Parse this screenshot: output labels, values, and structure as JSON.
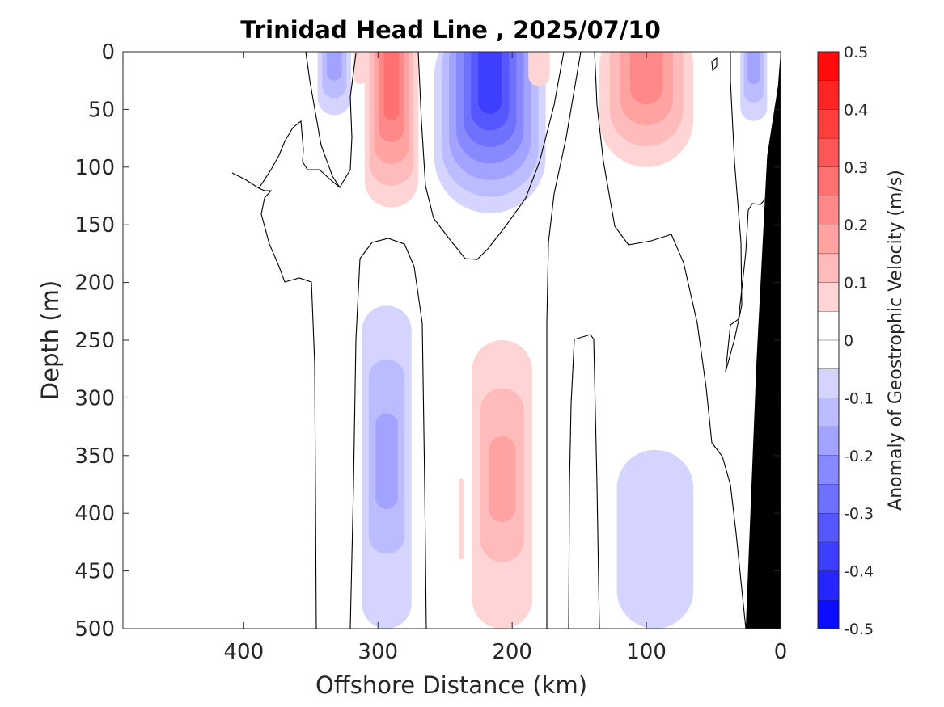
{
  "chart_data": {
    "type": "contour",
    "title": "Trinidad Head Line , 2025/07/10",
    "xlabel": "Offshore Distance (km)",
    "ylabel": "Depth (m)",
    "colorbar_label": "Anomaly of Geostrophic Velocity (m/s)",
    "xlim": [
      490,
      0
    ],
    "ylim": [
      0,
      500
    ],
    "x_reversed": true,
    "y_reversed": true,
    "x_ticks": [
      400,
      300,
      200,
      100,
      0
    ],
    "y_ticks": [
      0,
      50,
      100,
      150,
      200,
      250,
      300,
      350,
      400,
      450,
      500
    ],
    "colorbar": {
      "range": [
        -0.5,
        0.5
      ],
      "step": 0.05,
      "ticks": [
        0.5,
        0.4,
        0.3,
        0.2,
        0.1,
        0,
        -0.1,
        -0.2,
        -0.3,
        -0.4,
        -0.5
      ],
      "colormap": "blue-white-red",
      "positive_color": "#ff0000",
      "negative_color": "#0000ff"
    },
    "features": [
      {
        "kind": "positive",
        "x_range": [
          318,
          308
        ],
        "depth_range": [
          0,
          28
        ],
        "peak": 0.05
      },
      {
        "kind": "negative",
        "x_range": [
          345,
          320
        ],
        "depth_range": [
          0,
          55
        ],
        "peak": -0.15
      },
      {
        "kind": "positive",
        "x_range": [
          310,
          270
        ],
        "depth_range": [
          0,
          135
        ],
        "peak": 0.25
      },
      {
        "kind": "negative",
        "x_range": [
          258,
          175
        ],
        "depth_range": [
          0,
          140
        ],
        "peak": -0.35
      },
      {
        "kind": "positive",
        "x_range": [
          188,
          172
        ],
        "depth_range": [
          0,
          30
        ],
        "peak": 0.05
      },
      {
        "kind": "positive",
        "x_range": [
          135,
          65
        ],
        "depth_range": [
          0,
          100
        ],
        "peak": 0.2
      },
      {
        "kind": "negative",
        "x_range": [
          30,
          10
        ],
        "depth_range": [
          0,
          60
        ],
        "peak": -0.15
      },
      {
        "kind": "negative",
        "x_range": [
          312,
          275
        ],
        "depth_range": [
          220,
          500
        ],
        "peak": -0.15
      },
      {
        "kind": "positive",
        "x_range": [
          230,
          185
        ],
        "depth_range": [
          250,
          500
        ],
        "peak": 0.15
      },
      {
        "kind": "positive",
        "x_range": [
          240,
          236
        ],
        "depth_range": [
          370,
          440
        ],
        "peak": 0.05
      },
      {
        "kind": "negative",
        "x_range": [
          122,
          65
        ],
        "depth_range": [
          345,
          500
        ],
        "peak": -0.08
      }
    ],
    "bathymetry": {
      "color": "#000000",
      "boundary": [
        [
          26,
          500
        ],
        [
          0,
          500
        ],
        [
          0,
          0
        ],
        [
          2,
          30
        ],
        [
          10,
          90
        ],
        [
          18,
          270
        ],
        [
          26,
          500
        ]
      ]
    }
  }
}
